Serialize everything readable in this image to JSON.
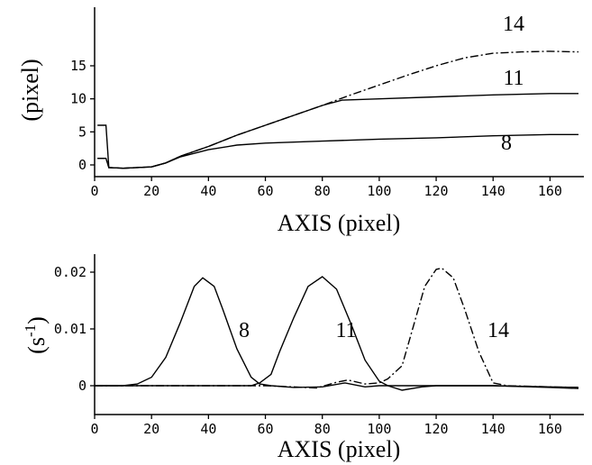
{
  "chart_data": [
    {
      "type": "line",
      "ylabel": "(pixel)",
      "xlabel": "AXIS (pixel)",
      "xlim": [
        0,
        170
      ],
      "ylim": [
        -1,
        18
      ],
      "xticks": [
        "0",
        "20",
        "40",
        "60",
        "80",
        "100",
        "120",
        "140",
        "160"
      ],
      "yticks": [
        "0",
        "5",
        "10",
        "15"
      ],
      "series": [
        {
          "name": "8",
          "style": "solid",
          "x": [
            1,
            4,
            5,
            10,
            20,
            25,
            30,
            40,
            50,
            60,
            80,
            100,
            120,
            140,
            160,
            170
          ],
          "y": [
            6.0,
            6.0,
            -0.4,
            -0.5,
            -0.3,
            0.3,
            1.2,
            2.3,
            3.0,
            3.3,
            3.6,
            3.9,
            4.1,
            4.4,
            4.6,
            4.6
          ]
        },
        {
          "name": "11",
          "style": "solid",
          "x": [
            1,
            4,
            5,
            10,
            20,
            25,
            30,
            40,
            50,
            60,
            70,
            80,
            87,
            100,
            120,
            140,
            160,
            170
          ],
          "y": [
            1.0,
            1.0,
            -0.4,
            -0.5,
            -0.3,
            0.3,
            1.3,
            2.8,
            4.5,
            6.0,
            7.5,
            9.0,
            9.8,
            10.0,
            10.3,
            10.6,
            10.8,
            10.8
          ]
        },
        {
          "name": "14",
          "style": "dash-dot",
          "x": [
            1,
            4,
            5,
            10,
            20,
            25,
            30,
            40,
            50,
            60,
            70,
            80,
            90,
            100,
            110,
            120,
            130,
            140,
            150,
            160,
            170
          ],
          "y": [
            1.0,
            1.0,
            -0.4,
            -0.5,
            -0.3,
            0.3,
            1.3,
            2.8,
            4.5,
            6.0,
            7.5,
            9.0,
            10.6,
            12.1,
            13.6,
            15.0,
            16.2,
            16.9,
            17.1,
            17.2,
            17.1
          ]
        }
      ],
      "annotations": [
        "14",
        "11",
        "8"
      ]
    },
    {
      "type": "line",
      "ylabel": "(s-1)",
      "xlabel": "AXIS (pixel)",
      "xlim": [
        0,
        170
      ],
      "ylim": [
        -0.0025,
        0.0235
      ],
      "xticks": [
        "0",
        "20",
        "40",
        "60",
        "80",
        "100",
        "120",
        "140",
        "160"
      ],
      "yticks": [
        "0",
        "0.01",
        "0.02"
      ],
      "series": [
        {
          "name": "8",
          "style": "solid",
          "x": [
            0,
            10,
            15,
            20,
            25,
            30,
            35,
            38,
            42,
            45,
            50,
            55,
            58,
            62,
            70,
            80,
            88,
            95,
            100,
            120,
            140,
            160,
            170
          ],
          "y": [
            0,
            0,
            0.0003,
            0.0015,
            0.005,
            0.011,
            0.0175,
            0.019,
            0.0175,
            0.0135,
            0.0065,
            0.0015,
            0.0003,
            0,
            -0.0003,
            -0.0002,
            0.0005,
            -0.0002,
            0,
            0,
            0,
            -0.0002,
            -0.0003
          ]
        },
        {
          "name": "11",
          "style": "solid",
          "x": [
            0,
            40,
            55,
            58,
            62,
            65,
            70,
            75,
            80,
            85,
            90,
            95,
            100,
            103,
            108,
            115,
            120,
            140,
            160,
            170
          ],
          "y": [
            0,
            0,
            0,
            0.0005,
            0.002,
            0.006,
            0.012,
            0.0175,
            0.0192,
            0.017,
            0.011,
            0.0045,
            0.0008,
            0,
            -0.0008,
            -0.0002,
            0,
            0,
            -0.0003,
            -0.0005
          ]
        },
        {
          "name": "14",
          "style": "dash-dot",
          "x": [
            0,
            60,
            78,
            85,
            89,
            95,
            100,
            103,
            108,
            112,
            116,
            120,
            122,
            126,
            130,
            135,
            140,
            145,
            160,
            170
          ],
          "y": [
            0,
            0,
            -0.0004,
            0.0006,
            0.001,
            0.0003,
            0.0005,
            0.0012,
            0.0035,
            0.0105,
            0.0175,
            0.0205,
            0.0207,
            0.019,
            0.0135,
            0.006,
            0.0005,
            0,
            -0.0002,
            -0.0003
          ]
        }
      ],
      "annotations": [
        "8",
        "11",
        "14"
      ]
    }
  ]
}
